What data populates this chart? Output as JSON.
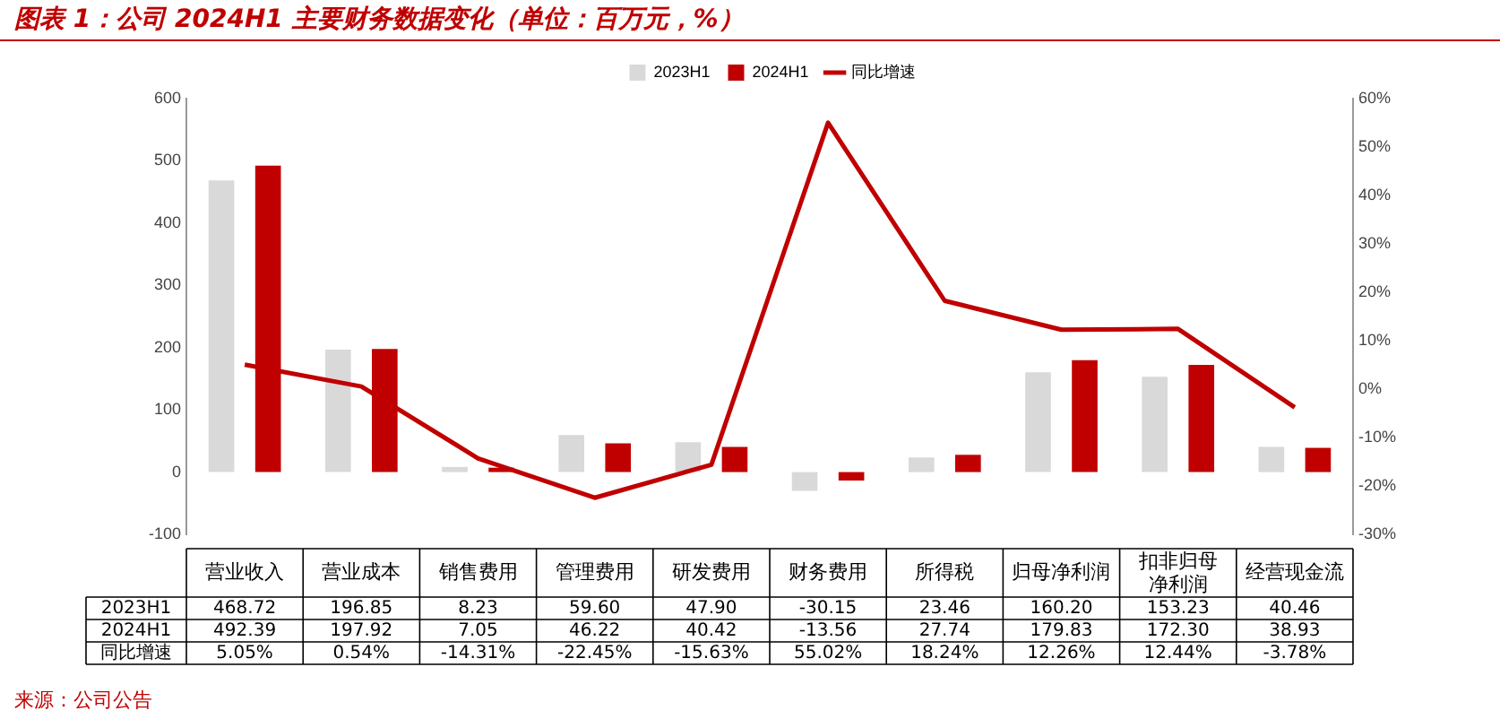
{
  "chart_data": {
    "type": "bar",
    "title": "图表 1：公司 2024H1 主要财务数据变化（单位：百万元，%）",
    "categories": [
      "营业收入",
      "营业成本",
      "销售费用",
      "管理费用",
      "研发费用",
      "财务费用",
      "所得税",
      "归母净利润",
      "扣非归母净利润",
      "经营现金流"
    ],
    "series": [
      {
        "name": "2023H1",
        "color": "#d9d9d9",
        "values": [
          468.72,
          196.85,
          8.23,
          59.6,
          47.9,
          -30.15,
          23.46,
          160.2,
          153.23,
          40.46
        ],
        "value_labels": [
          "468.72",
          "196.85",
          "8.23",
          "59.60",
          "47.90",
          "-30.15",
          "23.46",
          "160.20",
          "153.23",
          "40.46"
        ]
      },
      {
        "name": "2024H1",
        "color": "#c00000",
        "values": [
          492.39,
          197.92,
          7.05,
          46.22,
          40.42,
          -13.56,
          27.74,
          179.83,
          172.3,
          38.93
        ],
        "value_labels": [
          "492.39",
          "197.92",
          "7.05",
          "46.22",
          "40.42",
          "-13.56",
          "27.74",
          "179.83",
          "172.30",
          "38.93"
        ]
      },
      {
        "name": "同比增速",
        "type": "line",
        "axis": "y2",
        "color": "#c00000",
        "values": [
          5.05,
          0.54,
          -14.31,
          -22.45,
          -15.63,
          55.02,
          18.24,
          12.26,
          12.44,
          -3.78
        ],
        "value_labels": [
          "5.05%",
          "0.54%",
          "-14.31%",
          "-22.45%",
          "-15.63%",
          "55.02%",
          "18.24%",
          "12.26%",
          "12.44%",
          "-3.78%"
        ]
      }
    ],
    "ylim": [
      -100,
      600
    ],
    "yticks": [
      -100,
      0,
      100,
      200,
      300,
      400,
      500,
      600
    ],
    "y2lim": [
      -30,
      60
    ],
    "y2ticks": [
      {
        "value": -30,
        "label": "-30%"
      },
      {
        "value": -20,
        "label": "-20%"
      },
      {
        "value": -10,
        "label": "-10%"
      },
      {
        "value": 0,
        "label": "0%"
      },
      {
        "value": 10,
        "label": "10%"
      },
      {
        "value": 20,
        "label": "20%"
      },
      {
        "value": 30,
        "label": "30%"
      },
      {
        "value": 40,
        "label": "40%"
      },
      {
        "value": 50,
        "label": "50%"
      },
      {
        "value": 60,
        "label": "60%"
      }
    ],
    "legend": "top",
    "grid": false,
    "marker": "none",
    "line_style": "solid",
    "annotations": [
      "来源：公司公告"
    ]
  }
}
